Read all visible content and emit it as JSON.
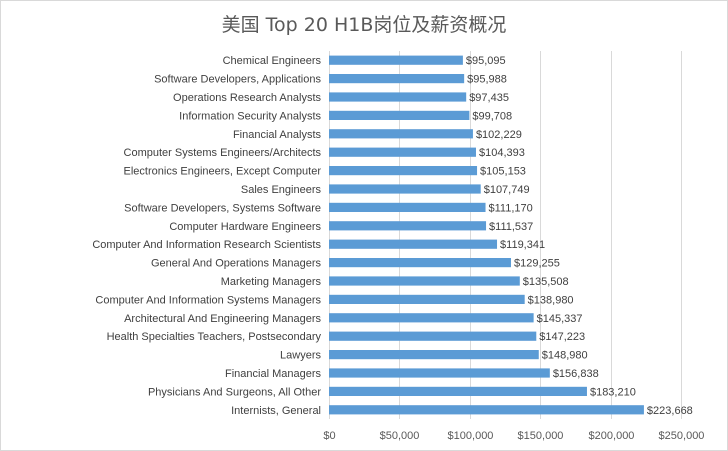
{
  "chart_data": {
    "type": "bar",
    "orientation": "horizontal",
    "title": "美国 Top 20 H1B岗位及薪资概况",
    "xlabel": "",
    "ylabel": "",
    "xlim": [
      0,
      250000
    ],
    "x_ticks": [
      0,
      50000,
      100000,
      150000,
      200000,
      250000
    ],
    "x_tick_labels": [
      "$0",
      "$50,000",
      "$100,000",
      "$150,000",
      "$200,000",
      "$250,000"
    ],
    "grid": true,
    "legend": "none",
    "bar_color": "#5b9bd5",
    "categories": [
      "Chemical Engineers",
      "Software Developers, Applications",
      "Operations Research Analysts",
      "Information Security Analysts",
      "Financial Analysts",
      "Computer Systems Engineers/Architects",
      "Electronics Engineers, Except Computer",
      "Sales Engineers",
      "Software Developers, Systems Software",
      "Computer Hardware Engineers",
      "Computer And Information Research Scientists",
      "General And Operations Managers",
      "Marketing Managers",
      "Computer And Information Systems Managers",
      "Architectural And Engineering Managers",
      "Health Specialties Teachers, Postsecondary",
      "Lawyers",
      "Financial Managers",
      "Physicians And Surgeons, All Other",
      "Internists, General"
    ],
    "values": [
      95095,
      95988,
      97435,
      99708,
      102229,
      104393,
      105153,
      107749,
      111170,
      111537,
      119341,
      129255,
      135508,
      138980,
      145337,
      147223,
      148980,
      156838,
      183210,
      223668
    ],
    "value_labels": [
      "$95,095",
      "$95,988",
      "$97,435",
      "$99,708",
      "$102,229",
      "$104,393",
      "$105,153",
      "$107,749",
      "$111,170",
      "$111,537",
      "$119,341",
      "$129,255",
      "$135,508",
      "$138,980",
      "$145,337",
      "$147,223",
      "$148,980",
      "$156,838",
      "$183,210",
      "$223,668"
    ]
  }
}
